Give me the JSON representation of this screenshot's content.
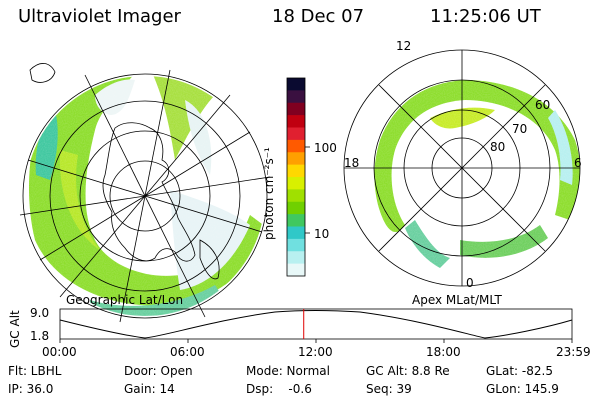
{
  "header": {
    "instrument": "Ultraviolet Imager",
    "date": "18 Dec 07",
    "time": "11:25:06 UT"
  },
  "left_panel": {
    "caption": "Geographic Lat/Lon"
  },
  "right_panel": {
    "caption": "Apex MLat/MLT",
    "mlt_labels": {
      "top": "12",
      "left": "18",
      "right": "6",
      "bottom": "0"
    },
    "lat_labels": [
      "60",
      "70",
      "80"
    ]
  },
  "colorbar": {
    "unit": "photon cm⁻²s⁻¹",
    "ticks": [
      "100",
      "10"
    ],
    "colors": [
      "#0a0a30",
      "#3a1040",
      "#800020",
      "#c00010",
      "#e02030",
      "#ff5a00",
      "#ffa000",
      "#ffd800",
      "#d8f000",
      "#a0e000",
      "#70d000",
      "#40c860",
      "#30c8c8",
      "#70e0e0",
      "#b8f0f0",
      "#e8f8f8"
    ]
  },
  "altitude_plot": {
    "ylabel": "GC Alt",
    "y_ticks": [
      "9.0",
      "1.8"
    ],
    "x_ticks": [
      "00:00",
      "06:00",
      "12:00",
      "18:00",
      "23:59"
    ],
    "marker_time": "11:25",
    "marker_color": "#e00000"
  },
  "status": {
    "flt": "Flt: LBHL",
    "door": "Door: Open",
    "mode": "Mode: Normal",
    "gc_alt": "GC Alt: 8.8 Re",
    "glat": "GLat: -82.5",
    "ip": "IP: 36.0",
    "gain": "Gain: 14",
    "dsp": "Dsp:    -0.6",
    "seq": "Seq: 39",
    "glon": "GLon: 145.9"
  }
}
